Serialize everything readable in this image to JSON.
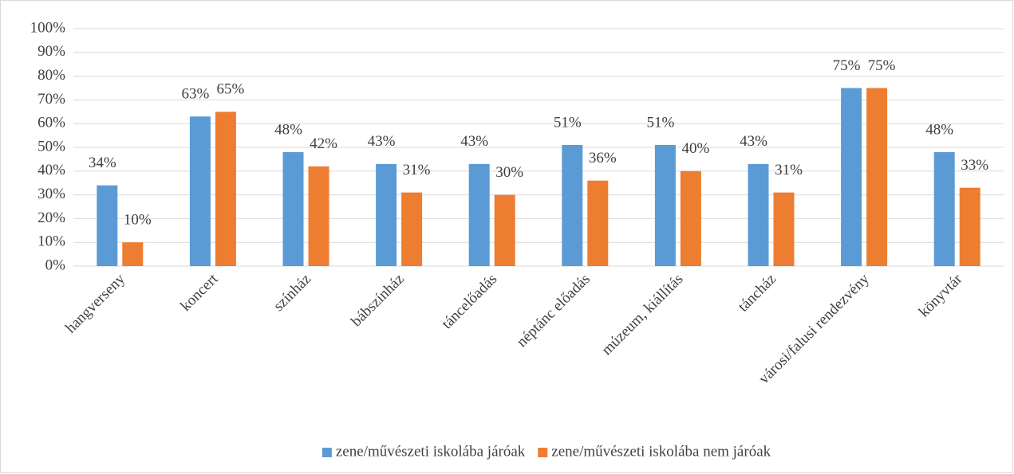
{
  "chart_data": {
    "type": "bar",
    "categories": [
      "hangverseny",
      "koncert",
      "színház",
      "bábszínház",
      "táncelőadás",
      "néptánc előadás",
      "múzeum, kiállítás",
      "táncház",
      "városi/falusi rendezvény",
      "könyvtár"
    ],
    "series": [
      {
        "name": "zene/művészeti iskolába járóak",
        "color": "#5b9bd5",
        "values": [
          34,
          63,
          48,
          43,
          43,
          51,
          51,
          43,
          75,
          48
        ],
        "value_labels": [
          "34%",
          "63%",
          "48%",
          "43%",
          "43%",
          "51%",
          "51%",
          "43%",
          "75%",
          "48%"
        ]
      },
      {
        "name": "zene/művészeti iskolába nem járóak",
        "color": "#ed7d31",
        "values": [
          10,
          65,
          42,
          31,
          30,
          36,
          40,
          31,
          75,
          33
        ],
        "value_labels": [
          "10%",
          "65%",
          "42%",
          "31%",
          "30%",
          "36%",
          "40%",
          "31%",
          "75%",
          "33%"
        ]
      }
    ],
    "ylim": [
      0,
      100
    ],
    "yticks": [
      {
        "value": 0,
        "label": "0%"
      },
      {
        "value": 10,
        "label": "10%"
      },
      {
        "value": 20,
        "label": "20%"
      },
      {
        "value": 30,
        "label": "30%"
      },
      {
        "value": 40,
        "label": "40%"
      },
      {
        "value": 50,
        "label": "50%"
      },
      {
        "value": 60,
        "label": "60%"
      },
      {
        "value": 70,
        "label": "70%"
      },
      {
        "value": 80,
        "label": "80%"
      },
      {
        "value": 90,
        "label": "90%"
      },
      {
        "value": 100,
        "label": "100%"
      }
    ],
    "grid": true,
    "legend": "bottom"
  }
}
